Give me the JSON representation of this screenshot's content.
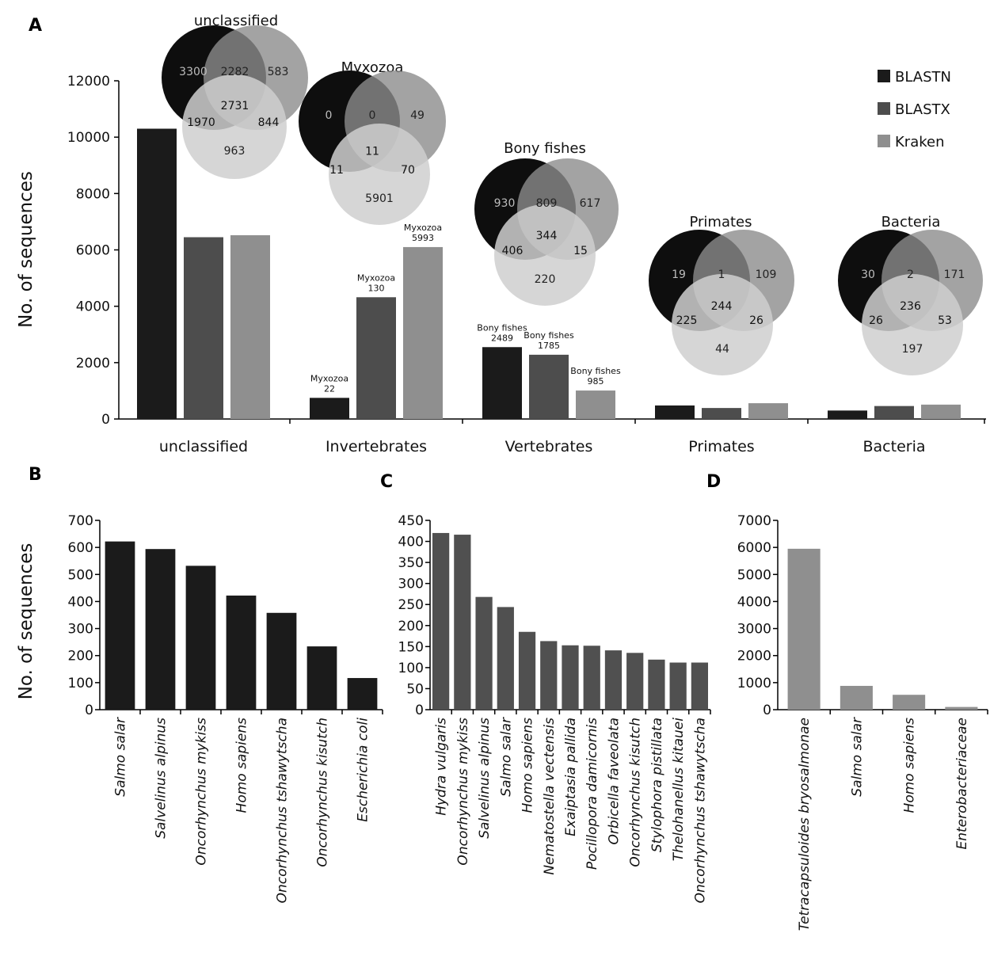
{
  "colors": {
    "BLASTN": "#1b1b1b",
    "BLASTX": "#4d4d4d",
    "Kraken": "#8f8f8f",
    "venn_a": "#0e0e0e",
    "venn_b": "#8c8c8c",
    "venn_c": "#cfcfcf"
  },
  "panels": {
    "A": "A",
    "B": "B",
    "C": "C",
    "D": "D"
  },
  "chart_data": [
    {
      "panel": "A",
      "type": "bar",
      "ylabel": "No. of sequences",
      "ylim": [
        0,
        12000
      ],
      "yticks": [
        "0",
        "2000",
        "4000",
        "6000",
        "8000",
        "10000",
        "12000"
      ],
      "categories": [
        "unclassified",
        "Invertebrates",
        "Vertebrates",
        "Primates",
        "Bacteria"
      ],
      "legend_position": "top-right",
      "series": [
        {
          "name": "BLASTN",
          "values": [
            10300,
            750,
            2550,
            480,
            300
          ]
        },
        {
          "name": "BLASTX",
          "values": [
            6450,
            4320,
            2280,
            390,
            460
          ]
        },
        {
          "name": "Kraken",
          "values": [
            6520,
            6100,
            1010,
            560,
            510
          ]
        }
      ],
      "bar_annotations": [
        {
          "category": 1,
          "series": 0,
          "lines": [
            "Myxozoa",
            "22"
          ]
        },
        {
          "category": 1,
          "series": 1,
          "lines": [
            "Myxozoa",
            "130"
          ]
        },
        {
          "category": 1,
          "series": 2,
          "lines": [
            "Myxozoa",
            "5993"
          ]
        },
        {
          "category": 2,
          "series": 0,
          "lines": [
            "Bony fishes",
            "2489"
          ]
        },
        {
          "category": 2,
          "series": 1,
          "lines": [
            "Bony fishes",
            "1785"
          ]
        },
        {
          "category": 2,
          "series": 2,
          "lines": [
            "Bony fishes",
            "985"
          ]
        }
      ],
      "venns": [
        {
          "title": "unclassified",
          "numbers": [
            "3300",
            "2282",
            "583",
            "2731",
            "1970",
            "844",
            "963"
          ]
        },
        {
          "title": "Myxozoa",
          "numbers": [
            "0",
            "0",
            "49",
            "11",
            "11",
            "70",
            "5901"
          ]
        },
        {
          "title": "Bony fishes",
          "numbers": [
            "930",
            "809",
            "617",
            "344",
            "406",
            "15",
            "220"
          ]
        },
        {
          "title": "Primates",
          "numbers": [
            "19",
            "1",
            "109",
            "244",
            "225",
            "26",
            "44"
          ]
        },
        {
          "title": "Bacteria",
          "numbers": [
            "30",
            "2",
            "171",
            "236",
            "26",
            "53",
            "197"
          ]
        }
      ]
    },
    {
      "panel": "B",
      "type": "bar",
      "ylabel": "No. of sequences",
      "ylim": [
        0,
        700
      ],
      "yticks": [
        "0",
        "100",
        "200",
        "300",
        "400",
        "500",
        "600",
        "700"
      ],
      "categories": [
        "Salmo salar",
        "Salvelinus alpinus",
        "Oncorhynchus mykiss",
        "Homo sapiens",
        "Oncorhynchus tshawytscha",
        "Oncorhynchus kisutch",
        "Escherichia coli"
      ],
      "values": [
        622,
        594,
        532,
        422,
        358,
        234,
        117
      ]
    },
    {
      "panel": "C",
      "type": "bar",
      "ylim": [
        0,
        450
      ],
      "yticks": [
        "0",
        "50",
        "100",
        "150",
        "200",
        "250",
        "300",
        "350",
        "400",
        "450"
      ],
      "categories": [
        "Hydra vulgaris",
        "Oncorhynchus mykiss",
        "Salvelinus alpinus",
        "Salmo salar",
        "Homo sapiens",
        "Nematostella vectensis",
        "Exaiptasia pallida",
        "Pocillopora damicornis",
        "Orbicella faveolata",
        "Oncorhynchus kisutch",
        "Stylophora pistillata",
        "Thelohanellus kitauei",
        "Oncorhynchus tshawytscha"
      ],
      "values": [
        420,
        416,
        268,
        244,
        185,
        163,
        153,
        152,
        141,
        135,
        119,
        112,
        112
      ]
    },
    {
      "panel": "D",
      "type": "bar",
      "ylim": [
        0,
        7000
      ],
      "yticks": [
        "0",
        "1000",
        "2000",
        "3000",
        "4000",
        "5000",
        "6000",
        "7000"
      ],
      "categories": [
        "Tetracapsuloides bryosalmonae",
        "Salmo salar",
        "Homo sapiens",
        "Enterobacteriaceae"
      ],
      "values": [
        5950,
        880,
        550,
        100
      ]
    }
  ]
}
